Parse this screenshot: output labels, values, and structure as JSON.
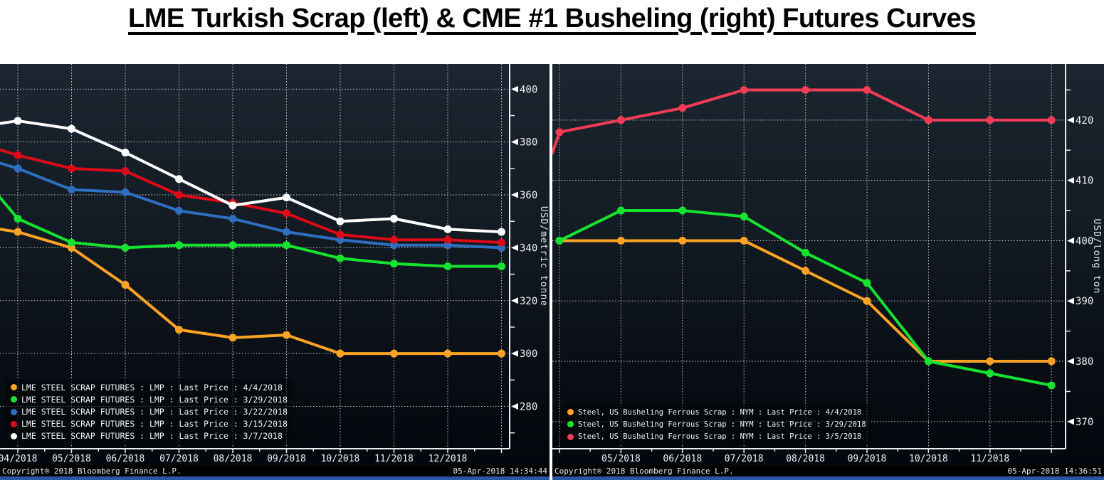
{
  "page": {
    "title": "LME Turkish Scrap (left) & CME #1 Busheling (right) Futures Curves"
  },
  "chart_data": [
    {
      "id": "lme-turkish-scrap",
      "type": "line",
      "title": "LME Turkish Scrap Futures Curves",
      "ylabel": "USD/metric tonne",
      "grid": true,
      "legend_position": "bottom-left",
      "x_tick_labels": [
        "04/2018",
        "05/2018",
        "06/2018",
        "07/2018",
        "08/2018",
        "09/2018",
        "10/2018",
        "11/2018",
        "12/2018",
        ""
      ],
      "ylim": [
        264,
        409.5
      ],
      "y_major_ticks": [
        280,
        300,
        320,
        340,
        360,
        380,
        400
      ],
      "y_minor_ticks": [
        270,
        290,
        310,
        330,
        350,
        370,
        390
      ],
      "series": [
        {
          "name": "LME STEEL SCRAP FUTURES : LMP : Last Price : 4/4/2018",
          "color": "#ffa226",
          "edge_value": 347,
          "values": [
            346,
            340,
            326,
            309,
            306,
            307,
            300,
            300,
            300,
            300
          ]
        },
        {
          "name": "LME STEEL SCRAP FUTURES : LMP : Last Price : 3/29/2018",
          "color": "#16e32f",
          "edge_value": 359,
          "values": [
            351,
            342,
            340,
            341,
            341,
            341,
            336,
            334,
            333,
            333
          ]
        },
        {
          "name": "LME STEEL SCRAP FUTURES : LMP : Last Price : 3/22/2018",
          "color": "#2e6fc0",
          "edge_value": 372,
          "values": [
            370,
            362,
            361,
            354,
            351,
            346,
            343,
            341,
            341,
            340
          ]
        },
        {
          "name": "LME STEEL SCRAP FUTURES : LMP : Last Price : 3/15/2018",
          "color": "#dd0a18",
          "edge_value": 377,
          "values": [
            375,
            370,
            369,
            360,
            357,
            353,
            345,
            343,
            343,
            342
          ]
        },
        {
          "name": "LME STEEL SCRAP FUTURES : LMP : Last Price : 3/7/2018",
          "color": "#ffffff",
          "edge_value": 387,
          "values": [
            388,
            385,
            376,
            366,
            356,
            359,
            350,
            351,
            347,
            346
          ]
        }
      ],
      "footer": {
        "copyright": "Copyright® 2018 Bloomberg Finance L.P.",
        "timestamp": "05-Apr-2018 14:34:44"
      }
    },
    {
      "id": "cme-busheling",
      "type": "line",
      "title": "CME #1 Busheling Futures Curves",
      "ylabel": "USD/long ton",
      "grid": true,
      "legend_position": "bottom-left",
      "x_tick_labels": [
        "",
        "05/2018",
        "06/2018",
        "07/2018",
        "08/2018",
        "09/2018",
        "10/2018",
        "11/2018",
        ""
      ],
      "ylim": [
        365.5,
        429.3
      ],
      "y_major_ticks": [
        370,
        380,
        390,
        400,
        410,
        420
      ],
      "y_minor_ticks": [
        375,
        385,
        395,
        405,
        415,
        425
      ],
      "series": [
        {
          "name": "Steel, US Busheling Ferrous Scrap : NYM : Last Price : 4/4/2018",
          "color": "#ffa226",
          "values": [
            400,
            400,
            400,
            400,
            395,
            390,
            380,
            380,
            380
          ]
        },
        {
          "name": "Steel, US Busheling Ferrous Scrap : NYM : Last Price : 3/29/2018",
          "color": "#16e32f",
          "values": [
            400,
            405,
            405,
            404,
            398,
            393,
            380,
            378,
            376
          ]
        },
        {
          "name": "Steel, US Busheling Ferrous Scrap : NYM : Last Price : 3/5/2018",
          "color": "#f23c55",
          "edge_value": 414.5,
          "values": [
            418,
            420,
            422,
            425,
            425,
            425,
            420,
            420,
            420
          ]
        }
      ],
      "footer": {
        "copyright": "Copyright® 2018 Bloomberg Finance L.P.",
        "timestamp": "05-Apr-2018 14:36:51"
      }
    }
  ]
}
